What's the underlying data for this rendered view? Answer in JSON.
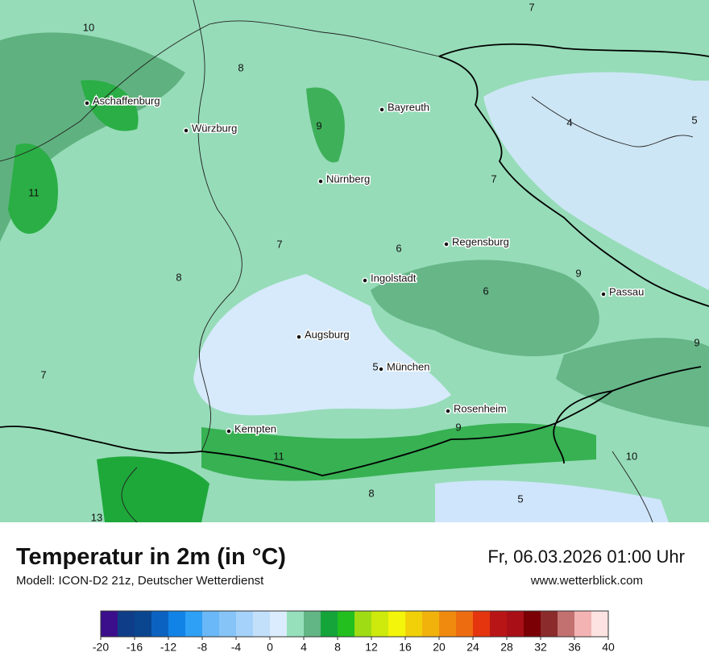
{
  "map": {
    "cities": [
      "Aschaffenburg",
      "Würzburg",
      "Bayreuth",
      "Nürnberg",
      "Regensburg",
      "Ingolstadt",
      "Passau",
      "Augsburg",
      "München",
      "Rosenheim",
      "Kempten"
    ],
    "isolines": [
      "7",
      "10",
      "8",
      "9",
      "4",
      "5",
      "7",
      "11",
      "7",
      "6",
      "8",
      "9",
      "6",
      "9",
      "7",
      "5",
      "9",
      "11",
      "10",
      "8",
      "5",
      "13"
    ]
  },
  "header": {
    "title": "Temperatur in 2m (in °C)",
    "model": "Modell: ICON-D2 21z, Deutscher Wetterdienst",
    "date": "Fr, 06.03.2026 01:00 Uhr",
    "website": "www.wetterblick.com"
  },
  "colorbar": {
    "range": [
      -20,
      40
    ],
    "ticks": [
      -20,
      -16,
      -12,
      -8,
      -4,
      0,
      4,
      8,
      12,
      16,
      20,
      24,
      28,
      32,
      36,
      40
    ],
    "colors": [
      "#3b0f8c",
      "#0f3d87",
      "#0a4690",
      "#0c62c0",
      "#1283e6",
      "#2ea0f5",
      "#6ab8f7",
      "#86c4f7",
      "#a4d2fa",
      "#c3e0fb",
      "#daecfd",
      "#96e0bc",
      "#62b584",
      "#14a43a",
      "#22bf1f",
      "#a0dc14",
      "#cdea0c",
      "#f3f50a",
      "#f1d00a",
      "#f1b20c",
      "#f08a0f",
      "#ee6c10",
      "#e4350e",
      "#b81616",
      "#a80f17",
      "#7a0006",
      "#8b2b2b",
      "#c27070",
      "#f4b3b3",
      "#fde2e2"
    ]
  }
}
